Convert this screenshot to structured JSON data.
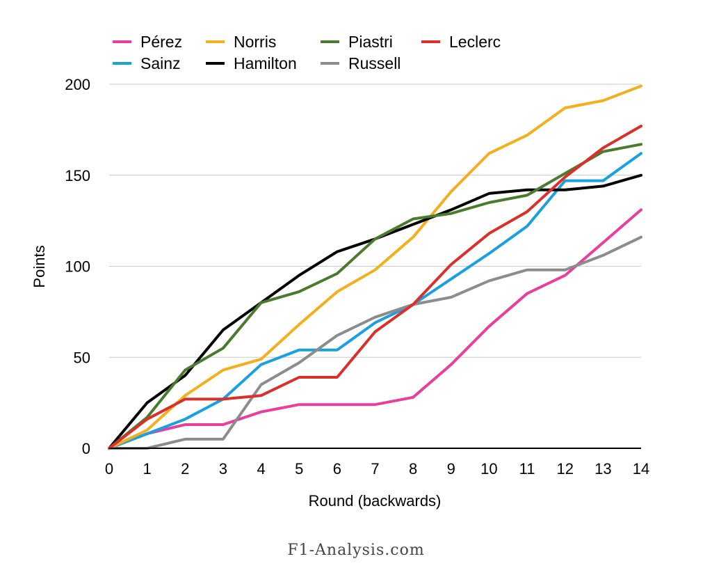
{
  "chart_data": {
    "type": "line",
    "xlabel": "Round (backwards)",
    "ylabel": "Points",
    "x": [
      0,
      1,
      2,
      3,
      4,
      5,
      6,
      7,
      8,
      9,
      10,
      11,
      12,
      13,
      14
    ],
    "xlim": [
      0,
      14
    ],
    "ylim": [
      0,
      200
    ],
    "yticks": [
      0,
      50,
      100,
      150,
      200
    ],
    "grid": "horizontal",
    "legend_position": "top",
    "series": [
      {
        "name": "Pérez",
        "color": "#e83e9c",
        "values": [
          0,
          8,
          13,
          13,
          20,
          24,
          24,
          24,
          28,
          46,
          67,
          85,
          95,
          113,
          131
        ]
      },
      {
        "name": "Sainz",
        "color": "#1aa0e0",
        "values": [
          0,
          8,
          16,
          27,
          46,
          54,
          54,
          69,
          79,
          93,
          107,
          122,
          147,
          147,
          162
        ]
      },
      {
        "name": "Norris",
        "color": "#f2b01e",
        "values": [
          0,
          10,
          29,
          43,
          49,
          68,
          86,
          98,
          116,
          141,
          162,
          172,
          187,
          191,
          199
        ]
      },
      {
        "name": "Hamilton",
        "color": "#000000",
        "values": [
          0,
          25,
          40,
          65,
          80,
          95,
          108,
          115,
          123,
          131,
          140,
          142,
          142,
          144,
          150
        ]
      },
      {
        "name": "Piastri",
        "color": "#4a7a2e",
        "values": [
          0,
          17,
          43,
          55,
          80,
          86,
          96,
          115,
          126,
          129,
          135,
          139,
          151,
          163,
          167
        ]
      },
      {
        "name": "Russell",
        "color": "#8c8c8c",
        "values": [
          0,
          0,
          5,
          5,
          35,
          47,
          62,
          72,
          79,
          83,
          92,
          98,
          98,
          106,
          116
        ]
      },
      {
        "name": "Leclerc",
        "color": "#d9302b",
        "values": [
          0,
          16,
          27,
          27,
          29,
          39,
          39,
          64,
          79,
          101,
          118,
          130,
          149,
          165,
          177
        ]
      }
    ]
  },
  "watermark": "F1-Analysis.com"
}
